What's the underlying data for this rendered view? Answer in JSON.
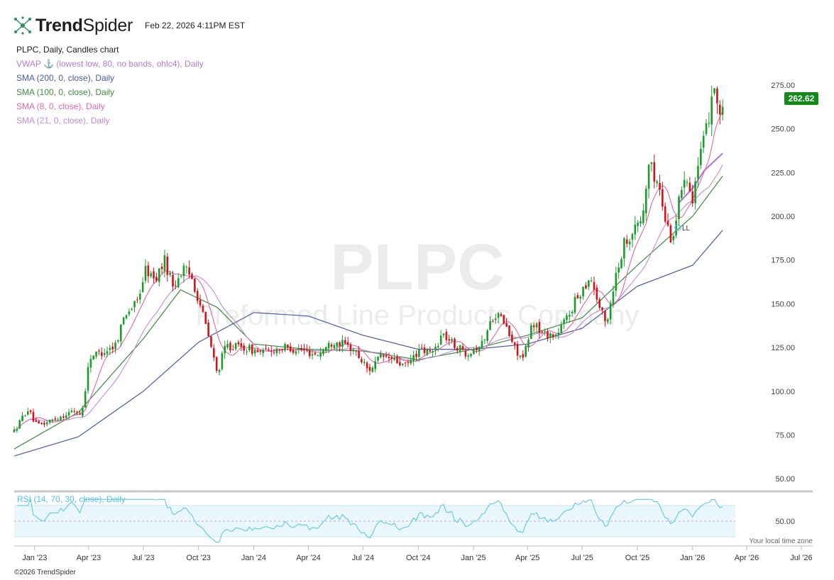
{
  "header": {
    "brand_bold": "Trend",
    "brand_light": "Spider",
    "timestamp": "Feb 22, 2026 4:11PM EST"
  },
  "legend": {
    "title": "PLPC, Daily, Candles chart",
    "items": [
      {
        "label": "VWAP ⚓ (lowest low, 80, no bands, ohlc4), Daily",
        "color": "#b57ad6"
      },
      {
        "label": "SMA (200, 0, close), Daily",
        "color": "#4a5aa8"
      },
      {
        "label": "SMA (100, 0, close), Daily",
        "color": "#3f8a3f"
      },
      {
        "label": "SMA (8, 0, close), Daily",
        "color": "#e06aa0"
      },
      {
        "label": "SMA (21, 0, close), Daily",
        "color": "#c48ad8"
      }
    ]
  },
  "watermark": {
    "symbol": "PLPC",
    "company": "Preformed Line Products Company"
  },
  "last_price": "262.62",
  "rsi_label": "RSI (14, 70, 30, close), Daily",
  "annotation": "LL",
  "tz_note": "Your local time zone",
  "copyright": "©2026 TrendSpider",
  "colors": {
    "up": "#1a9c2a",
    "down": "#d0141c",
    "price_tag": "#138a1a",
    "rsi": "#4fc3e8"
  },
  "chart_data": {
    "type": "candlestick",
    "title": "PLPC, Daily, Candles chart",
    "x_range": [
      "2022-11-28",
      "2026-07-20"
    ],
    "x_ticks": [
      "Jan '23",
      "Apr '23",
      "Jul '23",
      "Oct '23",
      "Jan '24",
      "Apr '24",
      "Jul '24",
      "Oct '24",
      "Jan '25",
      "Apr '25",
      "Jul '25",
      "Oct '25",
      "Jan '26",
      "Apr '26",
      "Jul '26"
    ],
    "y_ticks": [
      50,
      75,
      100,
      125,
      150,
      175,
      200,
      225,
      250,
      275
    ],
    "ylim": [
      44,
      292
    ],
    "price_path": [
      [
        "2022-11-28",
        77
      ],
      [
        "2022-12-20",
        90
      ],
      [
        "2023-01-05",
        80
      ],
      [
        "2023-01-20",
        82
      ],
      [
        "2023-02-15",
        86
      ],
      [
        "2023-03-10",
        89
      ],
      [
        "2023-03-20",
        86
      ],
      [
        "2023-04-03",
        120
      ],
      [
        "2023-04-20",
        122
      ],
      [
        "2023-05-15",
        126
      ],
      [
        "2023-06-01",
        145
      ],
      [
        "2023-06-20",
        150
      ],
      [
        "2023-07-05",
        170
      ],
      [
        "2023-07-20",
        163
      ],
      [
        "2023-08-05",
        175
      ],
      [
        "2023-08-20",
        160
      ],
      [
        "2023-09-05",
        170
      ],
      [
        "2023-09-20",
        165
      ],
      [
        "2023-10-05",
        148
      ],
      [
        "2023-10-20",
        128
      ],
      [
        "2023-11-01",
        110
      ],
      [
        "2023-11-15",
        126
      ],
      [
        "2023-12-15",
        125
      ],
      [
        "2024-01-15",
        122
      ],
      [
        "2024-02-15",
        125
      ],
      [
        "2024-03-15",
        124
      ],
      [
        "2024-04-15",
        121
      ],
      [
        "2024-05-15",
        129
      ],
      [
        "2024-06-15",
        124
      ],
      [
        "2024-07-10",
        112
      ],
      [
        "2024-08-01",
        120
      ],
      [
        "2024-08-20",
        118
      ],
      [
        "2024-09-10",
        114
      ],
      [
        "2024-10-01",
        123
      ],
      [
        "2024-10-25",
        122
      ],
      [
        "2024-11-10",
        133
      ],
      [
        "2024-12-01",
        126
      ],
      [
        "2024-12-20",
        122
      ],
      [
        "2025-01-15",
        127
      ],
      [
        "2025-02-05",
        145
      ],
      [
        "2025-02-20",
        140
      ],
      [
        "2025-03-10",
        125
      ],
      [
        "2025-03-25",
        118
      ],
      [
        "2025-04-10",
        140
      ],
      [
        "2025-04-25",
        133
      ],
      [
        "2025-05-20",
        132
      ],
      [
        "2025-06-10",
        145
      ],
      [
        "2025-06-25",
        155
      ],
      [
        "2025-07-15",
        166
      ],
      [
        "2025-07-28",
        150
      ],
      [
        "2025-08-10",
        138
      ],
      [
        "2025-08-25",
        165
      ],
      [
        "2025-09-10",
        186
      ],
      [
        "2025-09-25",
        192
      ],
      [
        "2025-10-10",
        200
      ],
      [
        "2025-10-20",
        230
      ],
      [
        "2025-11-05",
        218
      ],
      [
        "2025-11-18",
        196
      ],
      [
        "2025-11-28",
        186
      ],
      [
        "2025-12-10",
        210
      ],
      [
        "2025-12-20",
        228
      ],
      [
        "2025-12-31",
        210
      ],
      [
        "2026-01-12",
        232
      ],
      [
        "2026-01-25",
        250
      ],
      [
        "2026-02-05",
        278
      ],
      [
        "2026-02-15",
        258
      ],
      [
        "2026-02-20",
        262.62
      ]
    ],
    "series": [
      {
        "name": "SMA (200, 0, close), Daily",
        "points": [
          [
            "2022-11-28",
            63
          ],
          [
            "2023-03-15",
            74
          ],
          [
            "2023-07-01",
            100
          ],
          [
            "2023-10-01",
            128
          ],
          [
            "2024-01-01",
            145
          ],
          [
            "2024-04-01",
            143
          ],
          [
            "2024-07-01",
            132
          ],
          [
            "2024-10-01",
            124
          ],
          [
            "2025-01-01",
            124
          ],
          [
            "2025-04-01",
            127
          ],
          [
            "2025-07-01",
            136
          ],
          [
            "2025-10-01",
            160
          ],
          [
            "2026-01-01",
            172
          ],
          [
            "2026-02-20",
            192
          ]
        ]
      },
      {
        "name": "SMA (100, 0, close), Daily",
        "points": [
          [
            "2022-11-28",
            67
          ],
          [
            "2023-03-15",
            88
          ],
          [
            "2023-07-01",
            130
          ],
          [
            "2023-09-01",
            158
          ],
          [
            "2023-11-01",
            148
          ],
          [
            "2024-01-01",
            127
          ],
          [
            "2024-04-01",
            124
          ],
          [
            "2024-07-01",
            123
          ],
          [
            "2024-10-01",
            118
          ],
          [
            "2025-01-01",
            124
          ],
          [
            "2025-04-01",
            132
          ],
          [
            "2025-07-01",
            142
          ],
          [
            "2025-10-01",
            172
          ],
          [
            "2026-01-01",
            200
          ],
          [
            "2026-02-20",
            223
          ]
        ]
      },
      {
        "name": "VWAP ⚓ (lowest low, 80, no bands, ohlc4), Daily",
        "points": [
          [
            "2025-12-10",
            208
          ],
          [
            "2026-01-01",
            216
          ],
          [
            "2026-01-20",
            226
          ],
          [
            "2026-02-20",
            236
          ]
        ]
      }
    ],
    "rsi": {
      "name": "RSI (14, 70, 30, close), Daily",
      "band": [
        30,
        70
      ],
      "mid_tick": 50
    }
  }
}
